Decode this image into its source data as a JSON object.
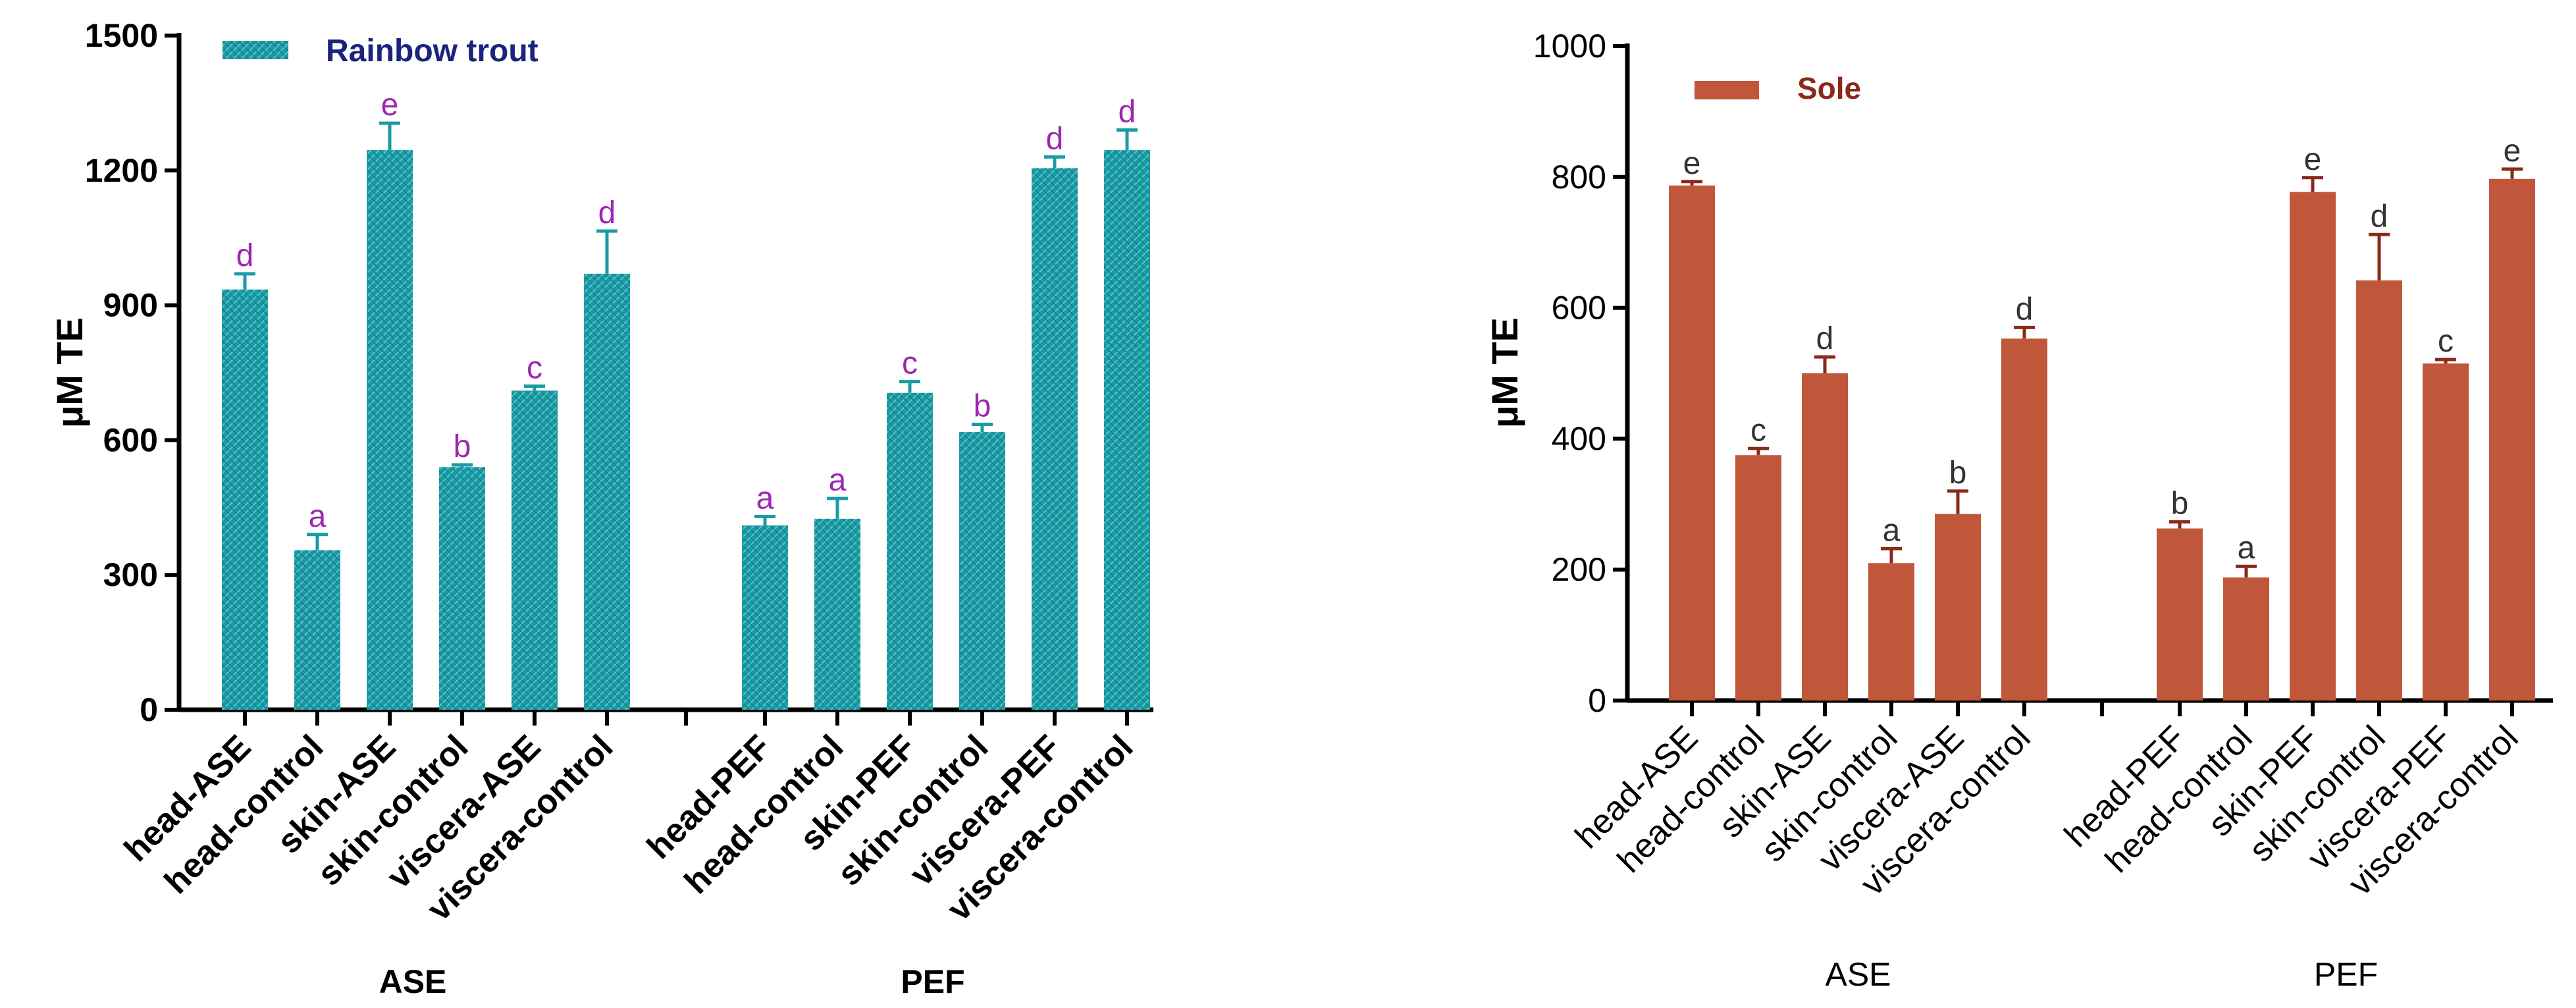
{
  "chart_data": [
    {
      "type": "bar",
      "legend": "Rainbow trout",
      "ylabel": "μM TE",
      "ylim": [
        0,
        1500
      ],
      "yticks": [
        0,
        300,
        600,
        900,
        1200,
        1500
      ],
      "bar_color": "#1a9ba5",
      "legend_text_color": "#1a237e",
      "letter_color": "#9c27b0",
      "groups": [
        {
          "name": "ASE",
          "categories": [
            "head-ASE",
            "head-control",
            "skin-ASE",
            "skin-control",
            "viscera-ASE",
            "viscera-control"
          ],
          "values": [
            935,
            355,
            1245,
            540,
            710,
            970
          ],
          "errors": [
            35,
            35,
            60,
            5,
            10,
            95
          ],
          "letters": [
            "d",
            "a",
            "e",
            "b",
            "c",
            "d"
          ]
        },
        {
          "name": "PEF",
          "categories": [
            "head-PEF",
            "head-control",
            "skin-PEF",
            "skin-control",
            "viscera-PEF",
            "viscera-control"
          ],
          "values": [
            410,
            425,
            705,
            618,
            1205,
            1245
          ],
          "errors": [
            20,
            45,
            25,
            17,
            25,
            45
          ],
          "letters": [
            "a",
            "a",
            "c",
            "b",
            "d",
            "d"
          ]
        }
      ]
    },
    {
      "type": "bar",
      "legend": "Sole",
      "ylabel": "μM TE",
      "ylim": [
        0,
        1000
      ],
      "yticks": [
        0,
        200,
        400,
        600,
        800,
        1000
      ],
      "bar_color": "#c0573a",
      "legend_text_color": "#8b2a1a",
      "letter_color": "#333333",
      "groups": [
        {
          "name": "ASE",
          "categories": [
            "head-ASE",
            "head-control",
            "skin-ASE",
            "skin-control",
            "viscera-ASE",
            "viscera-control"
          ],
          "values": [
            787,
            375,
            500,
            210,
            285,
            553
          ],
          "errors": [
            6,
            10,
            25,
            22,
            35,
            17
          ],
          "letters": [
            "e",
            "c",
            "d",
            "a",
            "b",
            "d"
          ]
        },
        {
          "name": "PEF",
          "categories": [
            "head-PEF",
            "head-control",
            "skin-PEF",
            "skin-control",
            "viscera-PEF",
            "viscera-control"
          ],
          "values": [
            263,
            188,
            777,
            642,
            515,
            797
          ],
          "errors": [
            10,
            17,
            22,
            70,
            6,
            15
          ],
          "letters": [
            "b",
            "a",
            "e",
            "d",
            "c",
            "e"
          ]
        }
      ]
    }
  ]
}
